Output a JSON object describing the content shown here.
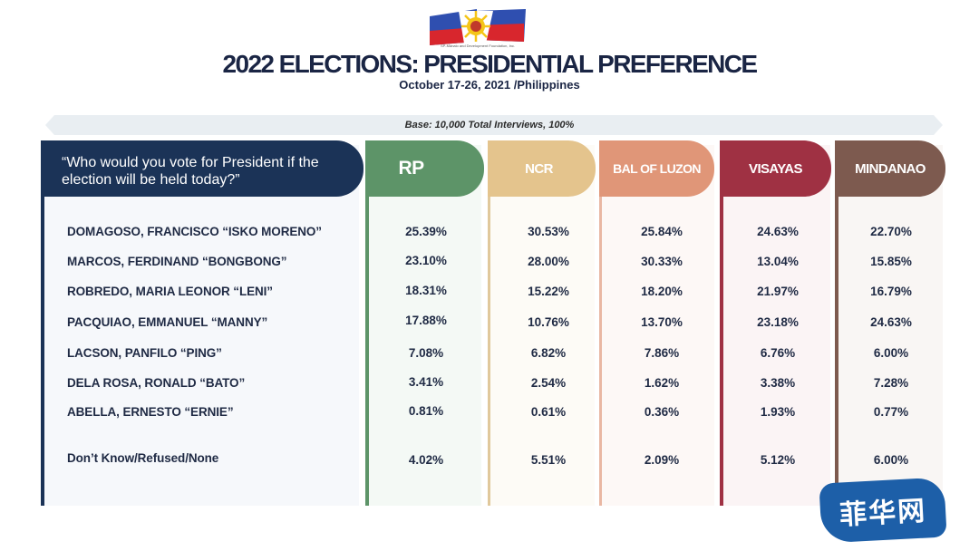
{
  "header": {
    "org_name": "SP-Manalo and Development Foundation, Inc.",
    "title": "2022 ELECTIONS: PRESIDENTIAL PREFERENCE",
    "subtitle": "October 17-26, 2021 /Philippines",
    "base": "Base: 10,000 Total Interviews, 100%"
  },
  "colors": {
    "navy": "#1b3357",
    "RP": "#5d9468",
    "NCR": "#e4c48d",
    "BAL OF LUZON": "#e09678",
    "VISAYAS": "#9f3143",
    "MINDANAO": "#7d5a4f"
  },
  "watermark": "菲华网",
  "chart_data": {
    "type": "table",
    "title": "2022 ELECTIONS: PRESIDENTIAL PREFERENCE",
    "question": "“Who would you vote for President if the election will be held today?”",
    "columns": [
      "RP",
      "NCR",
      "BAL OF LUZON",
      "VISAYAS",
      "MINDANAO"
    ],
    "rows": [
      {
        "label": "DOMAGOSO, FRANCISCO “ISKO MORENO”",
        "values": [
          "25.39%",
          "30.53%",
          "25.84%",
          "24.63%",
          "22.70%"
        ]
      },
      {
        "label": "MARCOS, FERDINAND “BONGBONG”",
        "values": [
          "23.10%",
          "28.00%",
          "30.33%",
          "13.04%",
          "15.85%"
        ]
      },
      {
        "label": "ROBREDO, MARIA LEONOR “LENI”",
        "values": [
          "18.31%",
          "15.22%",
          "18.20%",
          "21.97%",
          "16.79%"
        ]
      },
      {
        "label": "PACQUIAO, EMMANUEL “MANNY”",
        "values": [
          "17.88%",
          "10.76%",
          "13.70%",
          "23.18%",
          "24.63%"
        ]
      },
      {
        "label": "LACSON, PANFILO “PING”",
        "values": [
          "7.08%",
          "6.82%",
          "7.86%",
          "6.76%",
          "6.00%"
        ]
      },
      {
        "label": "DELA ROSA, RONALD “BATO”",
        "values": [
          "3.41%",
          "2.54%",
          "1.62%",
          "3.38%",
          "7.28%"
        ]
      },
      {
        "label": "ABELLA, ERNESTO “ERNIE”",
        "values": [
          "0.81%",
          "0.61%",
          "0.36%",
          "1.93%",
          "0.77%"
        ]
      },
      {
        "label": "Don’t Know/Refused/None",
        "values": [
          "4.02%",
          "5.51%",
          "2.09%",
          "5.12%",
          "6.00%"
        ]
      }
    ]
  }
}
